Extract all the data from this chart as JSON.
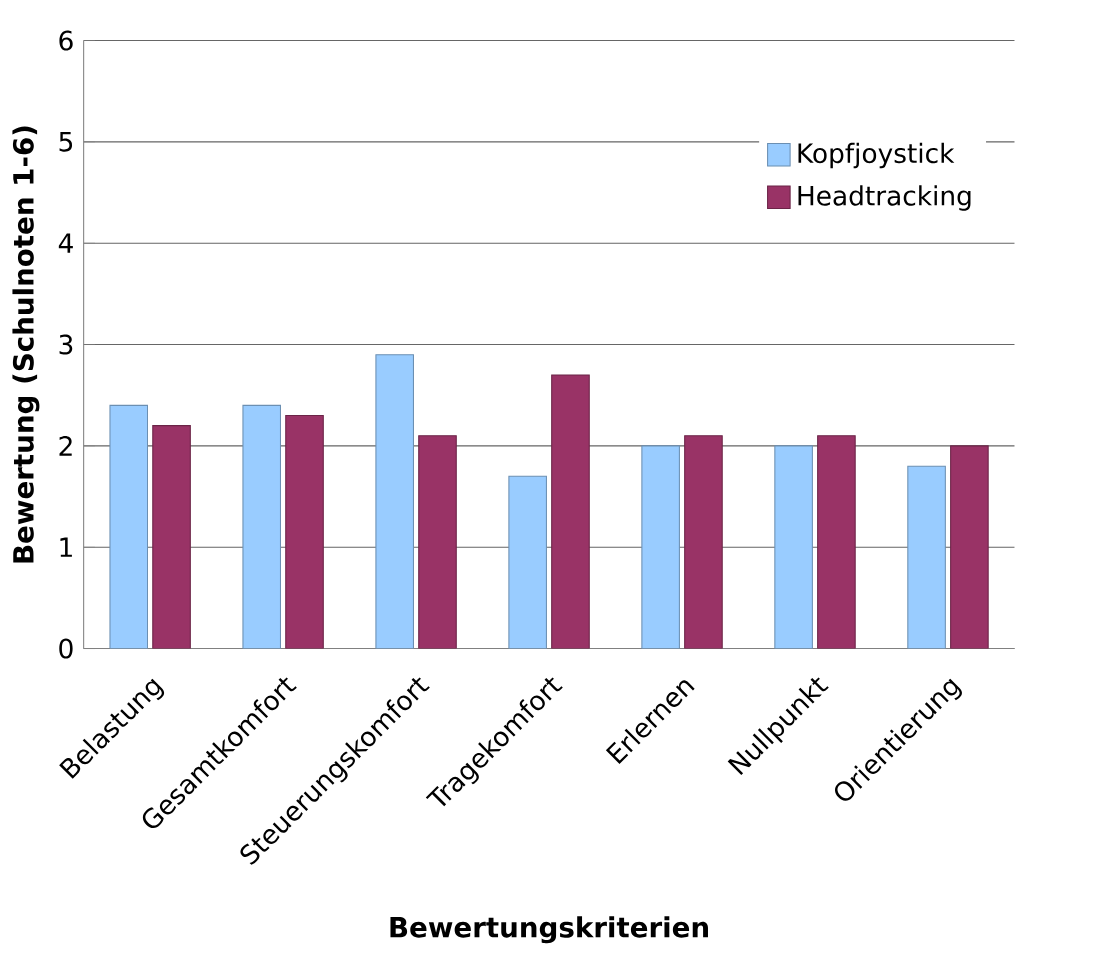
{
  "chart_data": {
    "type": "bar",
    "xlabel": "Bewertungskriterien",
    "ylabel": "Bewertung (Schulnoten 1-6)",
    "categories": [
      "Belastung",
      "Gesamtkomfort",
      "Steuerungskomfort",
      "Tragekomfort",
      "Erlernen",
      "Nullpunkt",
      "Orientierung"
    ],
    "series": [
      {
        "name": "Kopfjoystick",
        "color": "#99ccff",
        "values": [
          2.4,
          2.4,
          2.9,
          1.7,
          2.0,
          2.0,
          1.8
        ]
      },
      {
        "name": "Headtracking",
        "color": "#993366",
        "values": [
          2.2,
          2.3,
          2.1,
          2.7,
          2.1,
          2.1,
          2.0
        ]
      }
    ],
    "ylim": [
      0,
      6
    ],
    "yticks": [
      0,
      1,
      2,
      3,
      4,
      5,
      6
    ],
    "grid": "y",
    "legend": "top right"
  }
}
